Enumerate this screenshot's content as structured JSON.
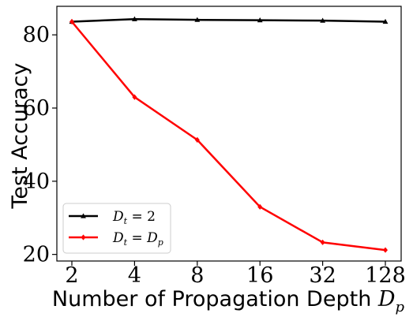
{
  "chart_data": {
    "type": "line",
    "categories": [
      "2",
      "4",
      "8",
      "16",
      "32",
      "128"
    ],
    "series": [
      {
        "name": "D_t = 2",
        "color": "#000000",
        "marker": "triangle",
        "values": [
          83.6,
          84.3,
          84.1,
          84.0,
          83.9,
          83.6
        ]
      },
      {
        "name": "D_t = D_p",
        "color": "#ff0000",
        "marker": "diamond",
        "values": [
          83.6,
          63.0,
          51.3,
          33.0,
          23.3,
          21.2
        ]
      }
    ],
    "xlabel": "Number of Propagation Depth D_p",
    "ylabel": "Test Accuracy",
    "yticks": [
      20,
      40,
      60,
      80
    ],
    "ylim": [
      18.2,
      87.8
    ],
    "grid": false,
    "legend_position": "bottom-left"
  }
}
